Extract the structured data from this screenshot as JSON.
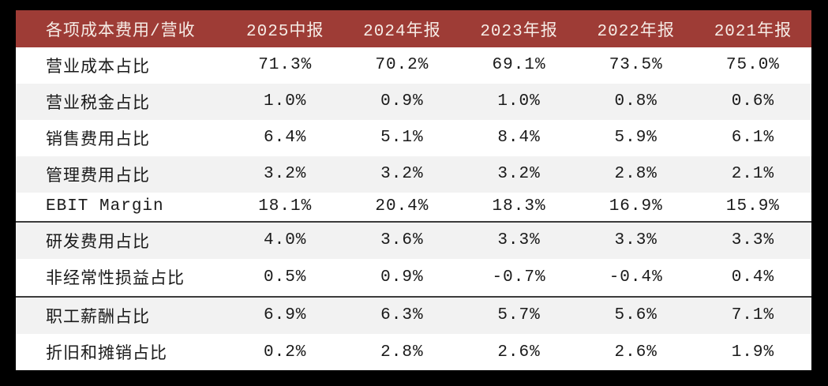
{
  "frame": {
    "background": "#000000"
  },
  "table": {
    "header": {
      "label": "各项成本费用/营收",
      "periods": [
        "2025中报",
        "2024年报",
        "2023年报",
        "2022年报",
        "2021年报"
      ],
      "background": "#9E3C36",
      "text_color": "#F6ECE6"
    },
    "rows": [
      {
        "label": "营业成本占比",
        "values": [
          "71.3%",
          "70.2%",
          "69.1%",
          "73.5%",
          "75.0%"
        ]
      },
      {
        "label": "营业税金占比",
        "values": [
          "1.0%",
          "0.9%",
          "1.0%",
          "0.8%",
          "0.6%"
        ]
      },
      {
        "label": "销售费用占比",
        "values": [
          "6.4%",
          "5.1%",
          "8.4%",
          "5.9%",
          "6.1%"
        ]
      },
      {
        "label": "管理费用占比",
        "values": [
          "3.2%",
          "3.2%",
          "3.2%",
          "2.8%",
          "2.1%"
        ]
      },
      {
        "label": "EBIT Margin",
        "values": [
          "18.1%",
          "20.4%",
          "18.3%",
          "16.9%",
          "15.9%"
        ]
      },
      {
        "label": "研发费用占比",
        "values": [
          "4.0%",
          "3.6%",
          "3.3%",
          "3.3%",
          "3.3%"
        ]
      },
      {
        "label": "非经常性损益占比",
        "values": [
          "0.5%",
          "0.9%",
          "-0.7%",
          "-0.4%",
          "0.4%"
        ]
      },
      {
        "label": "职工薪酬占比",
        "values": [
          "6.9%",
          "6.3%",
          "5.7%",
          "5.6%",
          "7.1%"
        ]
      },
      {
        "label": "折旧和摊销占比",
        "values": [
          "0.2%",
          "2.8%",
          "2.6%",
          "2.6%",
          "1.9%"
        ]
      }
    ],
    "section_breaks_after": [
      4,
      6
    ],
    "colors": {
      "row_even": "#FFFFFF",
      "row_odd": "#F2F2F2",
      "text": "#1A1A1A",
      "divider": "#3C3C3C"
    }
  },
  "chart_data": {
    "type": "table",
    "title": "各项成本费用/营收",
    "categories": [
      "2025中报",
      "2024年报",
      "2023年报",
      "2022年报",
      "2021年报"
    ],
    "unit": "%",
    "series": [
      {
        "name": "营业成本占比",
        "values": [
          71.3,
          70.2,
          69.1,
          73.5,
          75.0
        ]
      },
      {
        "name": "营业税金占比",
        "values": [
          1.0,
          0.9,
          1.0,
          0.8,
          0.6
        ]
      },
      {
        "name": "销售费用占比",
        "values": [
          6.4,
          5.1,
          8.4,
          5.9,
          6.1
        ]
      },
      {
        "name": "管理费用占比",
        "values": [
          3.2,
          3.2,
          3.2,
          2.8,
          2.1
        ]
      },
      {
        "name": "EBIT Margin",
        "values": [
          18.1,
          20.4,
          18.3,
          16.9,
          15.9
        ]
      },
      {
        "name": "研发费用占比",
        "values": [
          4.0,
          3.6,
          3.3,
          3.3,
          3.3
        ]
      },
      {
        "name": "非经常性损益占比",
        "values": [
          0.5,
          0.9,
          -0.7,
          -0.4,
          0.4
        ]
      },
      {
        "name": "职工薪酬占比",
        "values": [
          6.9,
          6.3,
          5.7,
          5.6,
          7.1
        ]
      },
      {
        "name": "折旧和摊销占比",
        "values": [
          0.2,
          2.8,
          2.6,
          2.6,
          1.9
        ]
      }
    ]
  }
}
